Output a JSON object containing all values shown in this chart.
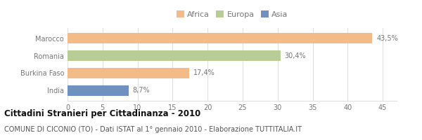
{
  "categories": [
    "Marocco",
    "Romania",
    "Burkina Faso",
    "India"
  ],
  "values": [
    43.5,
    30.4,
    17.4,
    8.7
  ],
  "labels": [
    "43,5%",
    "30,4%",
    "17,4%",
    "8,7%"
  ],
  "colors": [
    "#f2bb87",
    "#b8cc96",
    "#f2bb87",
    "#7090c0"
  ],
  "legend": [
    {
      "label": "Africa",
      "color": "#f2bb87"
    },
    {
      "label": "Europa",
      "color": "#b8cc96"
    },
    {
      "label": "Asia",
      "color": "#7090c0"
    }
  ],
  "xlim": [
    0,
    47
  ],
  "xticks": [
    0,
    5,
    10,
    15,
    20,
    25,
    30,
    35,
    40,
    45
  ],
  "title_bold": "Cittadini Stranieri per Cittadinanza - 2010",
  "subtitle": "COMUNE DI CICONIO (TO) - Dati ISTAT al 1° gennaio 2010 - Elaborazione TUTTITALIA.IT",
  "bar_height": 0.6,
  "background_color": "#ffffff",
  "grid_color": "#dddddd",
  "label_color": "#777777",
  "tick_label_color": "#777777",
  "title_fontsize": 8.5,
  "subtitle_fontsize": 7,
  "bar_label_fontsize": 7,
  "tick_fontsize": 7,
  "legend_fontsize": 8
}
